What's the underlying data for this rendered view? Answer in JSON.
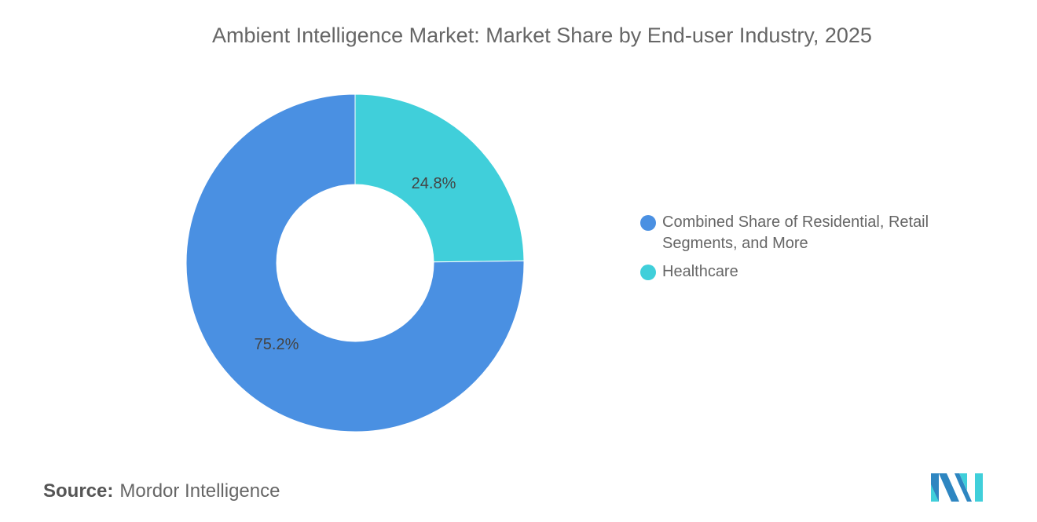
{
  "chart_data": {
    "type": "pie",
    "donut": true,
    "title": "Ambient Intelligence Market: Market Share by End-user Industry, 2025",
    "slices": [
      {
        "name": "Healthcare",
        "value": 24.8,
        "label": "24.8%",
        "color": "#40CFDA"
      },
      {
        "name": "Combined Share of Residential, Retail Segments, and More",
        "value": 75.2,
        "label": "75.2%",
        "color": "#4A90E2"
      }
    ],
    "legend_order": [
      1,
      0
    ],
    "legend_position": "right"
  },
  "source": {
    "label": "Source:",
    "value": "Mordor Intelligence"
  },
  "logo_text": "Mordor Intelligence"
}
